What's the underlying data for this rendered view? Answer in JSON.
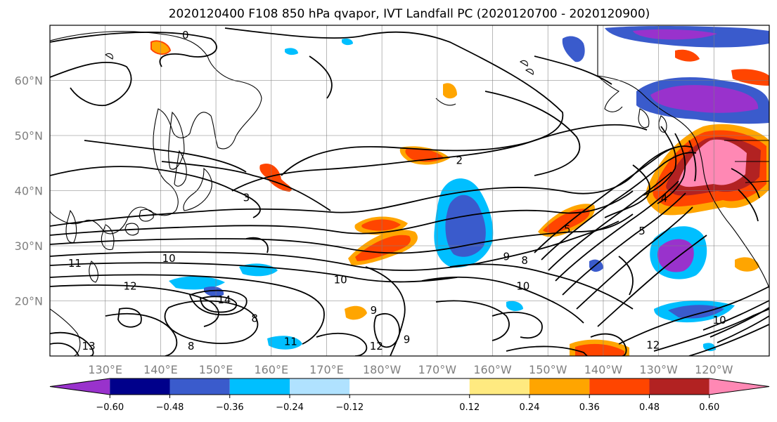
{
  "title": "2020120400 F108 850 hPa qvapor, IVT Landfall PC (2020120700 - 2020120900)",
  "map": {
    "lon_range": [
      120,
      250
    ],
    "lat_range": [
      10,
      70
    ],
    "lon_ticks": [
      {
        "value": 130,
        "label": "130°E"
      },
      {
        "value": 140,
        "label": "140°E"
      },
      {
        "value": 150,
        "label": "150°E"
      },
      {
        "value": 160,
        "label": "160°E"
      },
      {
        "value": 170,
        "label": "170°E"
      },
      {
        "value": 180,
        "label": "180°W"
      },
      {
        "value": 190,
        "label": "170°W"
      },
      {
        "value": 200,
        "label": "160°W"
      },
      {
        "value": 210,
        "label": "150°W"
      },
      {
        "value": 220,
        "label": "140°W"
      },
      {
        "value": 230,
        "label": "130°W"
      },
      {
        "value": 240,
        "label": "120°W"
      }
    ],
    "lat_ticks": [
      {
        "value": 20,
        "label": "20°N"
      },
      {
        "value": 30,
        "label": "30°N"
      },
      {
        "value": 40,
        "label": "40°N"
      },
      {
        "value": 50,
        "label": "50°N"
      },
      {
        "value": 60,
        "label": "60°N"
      }
    ],
    "grid": true
  },
  "contour_labels": [
    {
      "lon": 144.5,
      "lat": 68.2,
      "text": "0"
    },
    {
      "lon": 194.0,
      "lat": 45.5,
      "text": "2"
    },
    {
      "lon": 155.5,
      "lat": 38.7,
      "text": "3"
    },
    {
      "lon": 141.5,
      "lat": 27.7,
      "text": "10"
    },
    {
      "lon": 124.5,
      "lat": 26.8,
      "text": "11"
    },
    {
      "lon": 134.5,
      "lat": 22.7,
      "text": "12"
    },
    {
      "lon": 151.5,
      "lat": 20.2,
      "text": "14"
    },
    {
      "lon": 157.0,
      "lat": 16.8,
      "text": "8"
    },
    {
      "lon": 145.5,
      "lat": 11.8,
      "text": "8"
    },
    {
      "lon": 179.0,
      "lat": 11.8,
      "text": "12"
    },
    {
      "lon": 163.5,
      "lat": 12.6,
      "text": "11"
    },
    {
      "lon": 184.5,
      "lat": 13.0,
      "text": "9"
    },
    {
      "lon": 172.5,
      "lat": 23.8,
      "text": "10"
    },
    {
      "lon": 178.5,
      "lat": 18.3,
      "text": "9"
    },
    {
      "lon": 202.5,
      "lat": 28.0,
      "text": "9"
    },
    {
      "lon": 205.8,
      "lat": 27.3,
      "text": "8"
    },
    {
      "lon": 205.5,
      "lat": 22.7,
      "text": "10"
    },
    {
      "lon": 213.5,
      "lat": 33.0,
      "text": "5"
    },
    {
      "lon": 227.0,
      "lat": 32.7,
      "text": "5"
    },
    {
      "lon": 229.0,
      "lat": 12.0,
      "text": "12"
    },
    {
      "lon": 241.0,
      "lat": 16.5,
      "text": "10"
    },
    {
      "lon": 231.0,
      "lat": 38.6,
      "text": "4"
    },
    {
      "lon": 127.0,
      "lat": 11.8,
      "text": "13"
    }
  ],
  "colorbar": {
    "levels": [
      -0.72,
      -0.6,
      -0.48,
      -0.36,
      -0.24,
      -0.12,
      0.12,
      0.24,
      0.36,
      0.48,
      0.6,
      0.72
    ],
    "tick_labels": [
      "−0.60",
      "−0.48",
      "−0.36",
      "−0.24",
      "−0.12",
      "0.12",
      "0.24",
      "0.36",
      "0.48",
      "0.60"
    ],
    "colors": [
      "#9932cc",
      "#00008b",
      "#3a5bcc",
      "#00bfff",
      "#b0e2ff",
      "#ffffff",
      "#ffea80",
      "#ffa500",
      "#ff4500",
      "#b22222",
      "#ff88b4"
    ],
    "extend": "both"
  }
}
